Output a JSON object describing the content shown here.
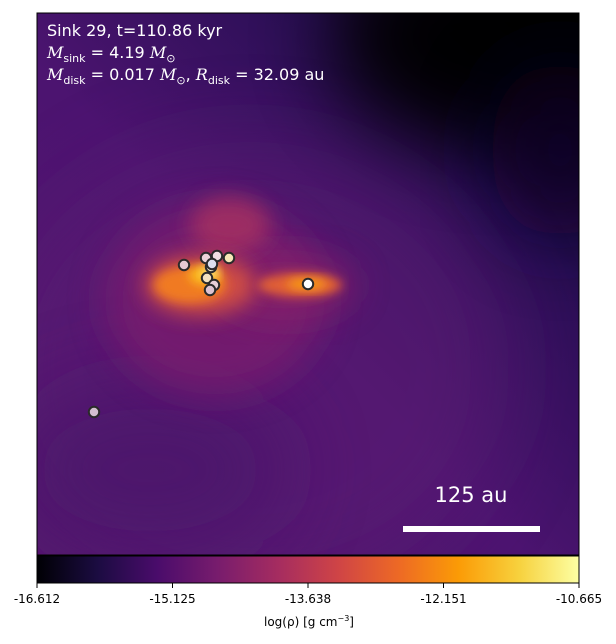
{
  "annotation": {
    "line1": "Sink 29, t=110.86 kyr",
    "msink_symbol": "M",
    "msink_sub": "sink",
    "msink_value": "4.19",
    "mdisk_symbol": "M",
    "mdisk_sub": "disk",
    "mdisk_value": "0.017",
    "rdisk_symbol": "R",
    "rdisk_sub": "disk",
    "rdisk_value": "32.09",
    "rdisk_unit": "au",
    "sun_symbol": "⊙"
  },
  "scalebar": {
    "label": "125 au",
    "length_au": 125
  },
  "colorbar": {
    "ticks": [
      "-16.612",
      "-15.125",
      "-13.638",
      "-12.151",
      "-10.665"
    ],
    "label_prefix": "log(ρ) [g cm",
    "label_exp": "−3",
    "label_suffix": "]",
    "colormap": "inferno-like",
    "colors": [
      "#000004",
      "#1b0c41",
      "#4a0c6b",
      "#781c6d",
      "#a52c60",
      "#cf4446",
      "#ed6925",
      "#fb9b06",
      "#f7d13d",
      "#fcffa4"
    ]
  },
  "sinks": [
    {
      "name": "sink-a",
      "fill": "#e7c9d4"
    },
    {
      "name": "sink-b",
      "fill": "#ecd2d8"
    },
    {
      "name": "sink-c",
      "fill": "#f2dfe3"
    },
    {
      "name": "sink-d",
      "fill": "#f6e7b7"
    },
    {
      "name": "sink-e",
      "fill": "#f3e9c9"
    },
    {
      "name": "sink-f",
      "fill": "#dce0ef"
    },
    {
      "name": "sink-g",
      "fill": "#f3e1bf"
    },
    {
      "name": "sink-h",
      "fill": "#e7cfd9"
    },
    {
      "name": "sink-i",
      "fill": "#ddc3d1"
    },
    {
      "name": "sink-29",
      "fill": "#ffffff"
    },
    {
      "name": "sink-j",
      "fill": "#d3bfd0"
    }
  ]
}
